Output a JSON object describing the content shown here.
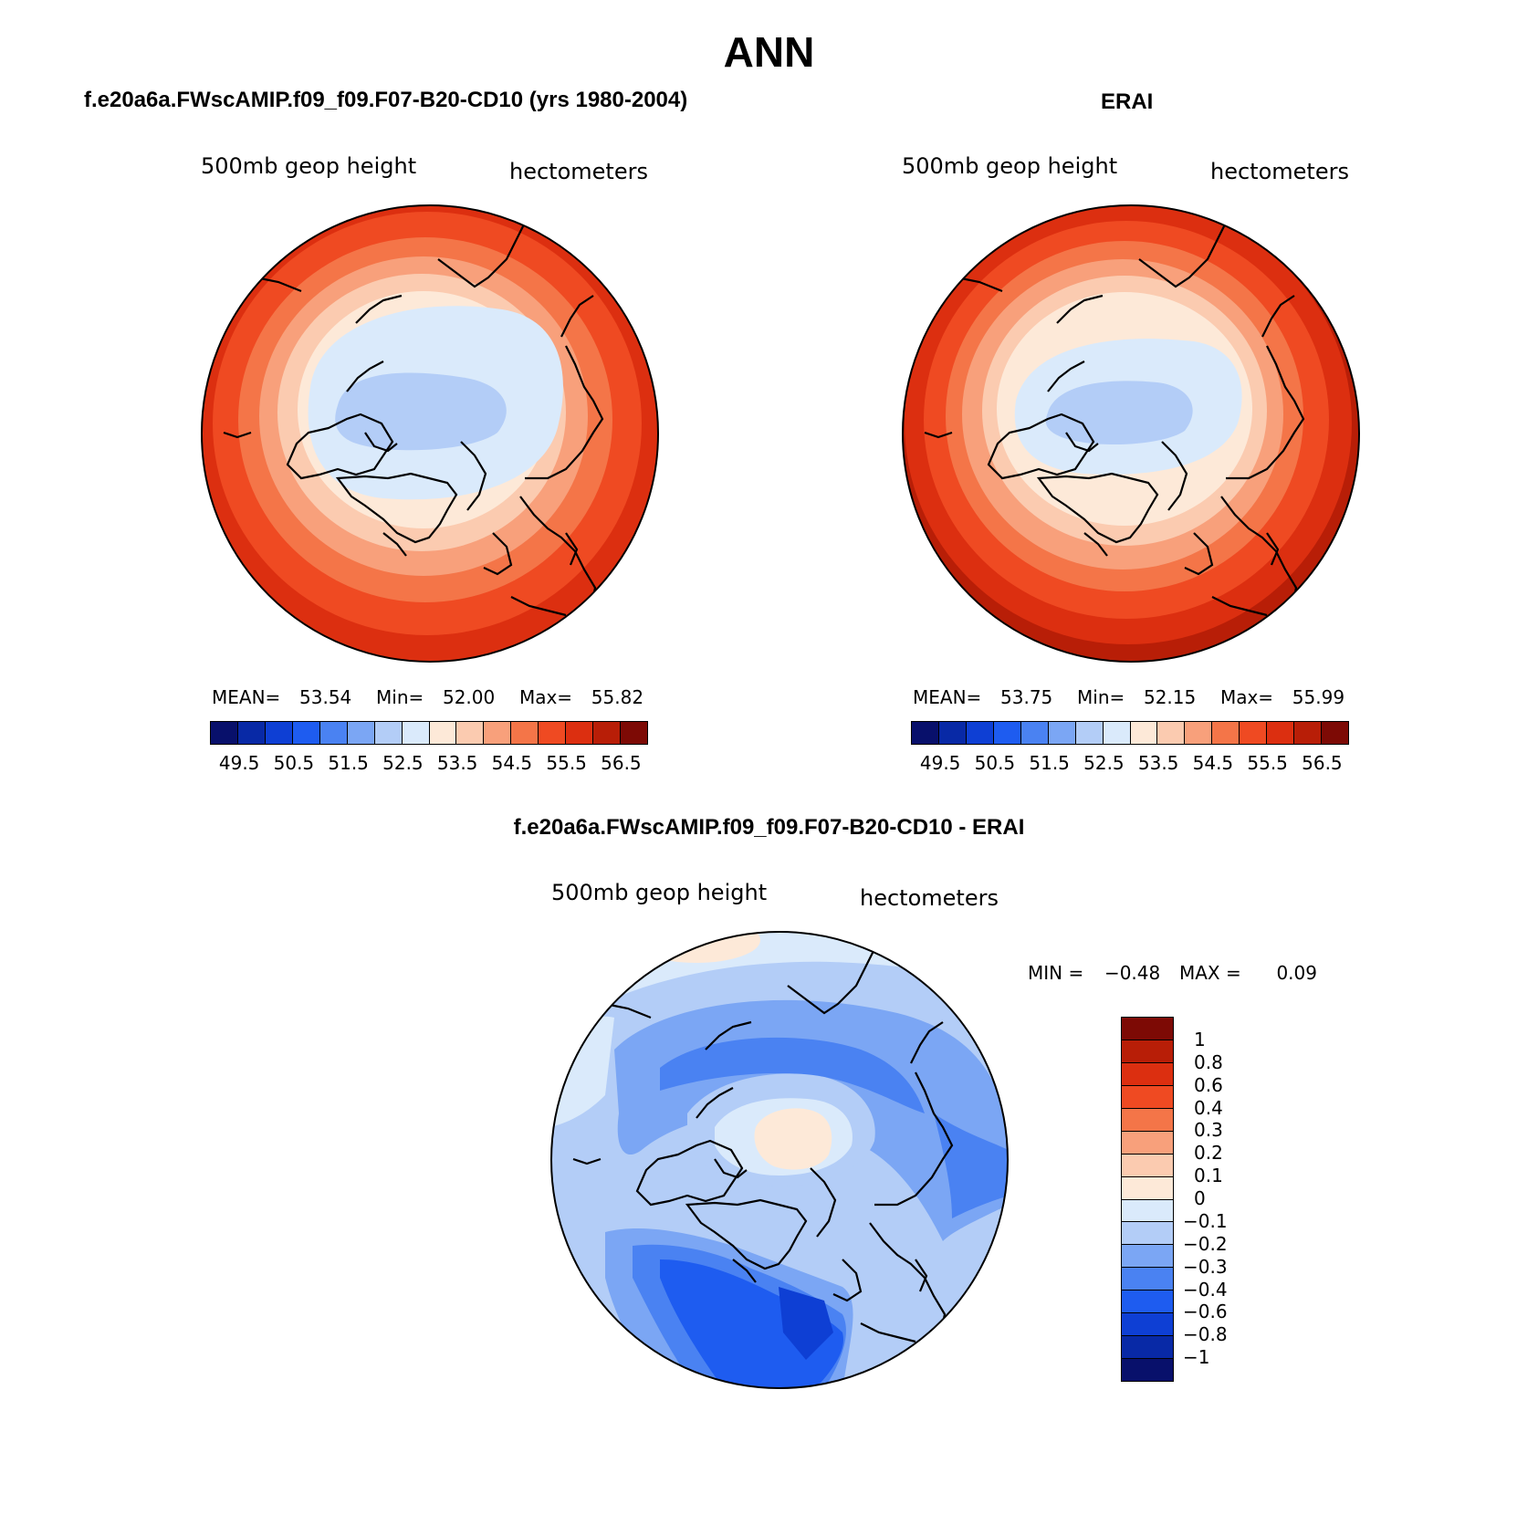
{
  "title": "ANN",
  "panels": [
    {
      "title": "f.e20a6a.FWscAMIP.f09_f09.F07-B20-CD10 (yrs 1980-2004)",
      "variable": "500mb geop height",
      "units": "hectometers",
      "stats": {
        "mean_label": "MEAN=",
        "mean": "53.54",
        "min_label": "Min=",
        "min": "52.00",
        "max_label": "Max=",
        "max": "55.82"
      }
    },
    {
      "title": "ERAI",
      "variable": "500mb geop height",
      "units": "hectometers",
      "stats": {
        "mean_label": "MEAN=",
        "mean": "53.75",
        "min_label": "Min=",
        "min": "52.15",
        "max_label": "Max=",
        "max": "55.99"
      }
    },
    {
      "title": "f.e20a6a.FWscAMIP.f09_f09.F07-B20-CD10 - ERAI",
      "variable": "500mb geop height",
      "units": "hectometers",
      "stats": {
        "min_label": "MIN =",
        "min": "−0.48",
        "max_label": "MAX =",
        "max": "0.09"
      }
    }
  ],
  "colorbar_main": {
    "colors": [
      "#08106b",
      "#0829a6",
      "#0e3fd4",
      "#1e5cf0",
      "#4a82f2",
      "#7ba6f4",
      "#b3cdf7",
      "#daeafb",
      "#fde9d8",
      "#fbcbb0",
      "#f8a07b",
      "#f47548",
      "#ef4a22",
      "#dc2f10",
      "#b81e07",
      "#7d0a05"
    ],
    "labels": [
      "49.5",
      "50.5",
      "51.5",
      "52.5",
      "53.5",
      "54.5",
      "55.5",
      "56.5"
    ]
  },
  "colorbar_diff": {
    "colors": [
      "#7d0a05",
      "#b81e07",
      "#dc2f10",
      "#ef4a22",
      "#f47548",
      "#f8a07b",
      "#fbcbb0",
      "#fde9d8",
      "#daeafb",
      "#b3cdf7",
      "#7ba6f4",
      "#4a82f2",
      "#1e5cf0",
      "#0e3fd4",
      "#0829a6",
      "#08106b"
    ],
    "labels": [
      "1",
      "0.8",
      "0.6",
      "0.4",
      "0.3",
      "0.2",
      "0.1",
      "0",
      "−0.1",
      "−0.2",
      "−0.3",
      "−0.4",
      "−0.6",
      "−0.8",
      "−1"
    ]
  }
}
